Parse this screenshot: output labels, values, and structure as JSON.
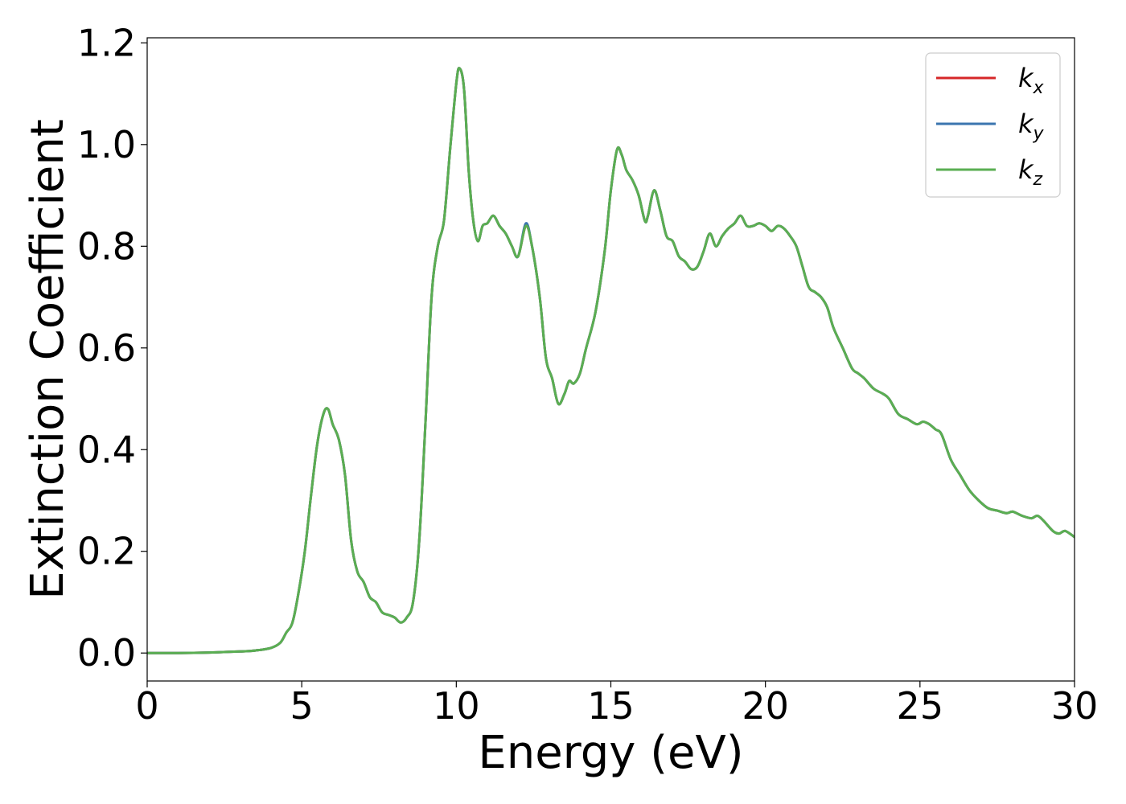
{
  "chart_data": {
    "type": "line",
    "title": "",
    "xlabel": "Energy (eV)",
    "ylabel": "Extinction Coefficient",
    "xlim": [
      0,
      30
    ],
    "ylim": [
      -0.055,
      1.21
    ],
    "xticks": [
      0,
      5,
      10,
      15,
      20,
      25,
      30
    ],
    "xtick_labels": [
      "0",
      "5",
      "10",
      "15",
      "20",
      "25",
      "30"
    ],
    "yticks": [
      0.0,
      0.2,
      0.4,
      0.6,
      0.8,
      1.0,
      1.2
    ],
    "ytick_labels": [
      "0.0",
      "0.2",
      "0.4",
      "0.6",
      "0.8",
      "1.0",
      "1.2"
    ],
    "grid": false,
    "legend_position": "top-right",
    "x": [
      0,
      1,
      2,
      3,
      3.5,
      4,
      4.3,
      4.5,
      4.7,
      4.9,
      5.1,
      5.3,
      5.5,
      5.7,
      5.85,
      6.0,
      6.2,
      6.4,
      6.6,
      6.8,
      7.0,
      7.2,
      7.4,
      7.6,
      7.8,
      8.0,
      8.2,
      8.4,
      8.6,
      8.8,
      9.0,
      9.2,
      9.4,
      9.6,
      9.8,
      10.0,
      10.1,
      10.25,
      10.4,
      10.55,
      10.7,
      10.85,
      11.0,
      11.2,
      11.4,
      11.6,
      11.8,
      12.0,
      12.25,
      12.45,
      12.7,
      12.9,
      13.1,
      13.3,
      13.5,
      13.65,
      13.8,
      14.0,
      14.2,
      14.5,
      14.8,
      15.0,
      15.2,
      15.35,
      15.5,
      15.7,
      15.9,
      16.1,
      16.2,
      16.4,
      16.6,
      16.8,
      17.0,
      17.2,
      17.4,
      17.6,
      17.8,
      18.0,
      18.2,
      18.4,
      18.6,
      18.8,
      19.0,
      19.2,
      19.4,
      19.6,
      19.8,
      20.0,
      20.2,
      20.4,
      20.6,
      20.8,
      21.0,
      21.2,
      21.4,
      21.6,
      21.8,
      22.0,
      22.2,
      22.5,
      22.8,
      23.0,
      23.2,
      23.5,
      23.8,
      24.0,
      24.3,
      24.6,
      24.9,
      25.1,
      25.3,
      25.5,
      25.7,
      26.0,
      26.3,
      26.6,
      26.9,
      27.2,
      27.5,
      27.8,
      28.0,
      28.3,
      28.6,
      28.8,
      29.0,
      29.3,
      29.5,
      29.7,
      30.0
    ],
    "series": [
      {
        "name": "k",
        "subscript": "x",
        "color": "#d62728",
        "values": [
          0.0,
          0.0,
          0.001,
          0.003,
          0.005,
          0.01,
          0.02,
          0.04,
          0.06,
          0.12,
          0.2,
          0.31,
          0.41,
          0.47,
          0.48,
          0.45,
          0.42,
          0.35,
          0.22,
          0.16,
          0.14,
          0.11,
          0.1,
          0.08,
          0.075,
          0.07,
          0.06,
          0.07,
          0.1,
          0.22,
          0.45,
          0.7,
          0.8,
          0.85,
          0.99,
          1.12,
          1.15,
          1.11,
          0.95,
          0.85,
          0.81,
          0.84,
          0.845,
          0.86,
          0.84,
          0.825,
          0.8,
          0.78,
          0.84,
          0.8,
          0.7,
          0.58,
          0.54,
          0.49,
          0.51,
          0.535,
          0.53,
          0.55,
          0.6,
          0.67,
          0.79,
          0.91,
          0.99,
          0.98,
          0.95,
          0.93,
          0.9,
          0.85,
          0.86,
          0.91,
          0.87,
          0.82,
          0.81,
          0.78,
          0.77,
          0.755,
          0.76,
          0.79,
          0.825,
          0.8,
          0.82,
          0.835,
          0.845,
          0.86,
          0.84,
          0.84,
          0.845,
          0.84,
          0.83,
          0.84,
          0.835,
          0.82,
          0.8,
          0.76,
          0.72,
          0.71,
          0.7,
          0.68,
          0.64,
          0.6,
          0.56,
          0.55,
          0.54,
          0.52,
          0.51,
          0.5,
          0.47,
          0.46,
          0.45,
          0.455,
          0.45,
          0.44,
          0.43,
          0.38,
          0.35,
          0.32,
          0.3,
          0.285,
          0.28,
          0.275,
          0.278,
          0.27,
          0.265,
          0.27,
          0.26,
          0.24,
          0.235,
          0.24,
          0.228
        ]
      },
      {
        "name": "k",
        "subscript": "y",
        "color": "#3b75af",
        "values": [
          0.0,
          0.0,
          0.001,
          0.003,
          0.005,
          0.01,
          0.02,
          0.04,
          0.06,
          0.12,
          0.2,
          0.31,
          0.41,
          0.47,
          0.48,
          0.45,
          0.42,
          0.35,
          0.22,
          0.16,
          0.14,
          0.11,
          0.1,
          0.08,
          0.075,
          0.07,
          0.06,
          0.07,
          0.1,
          0.22,
          0.45,
          0.7,
          0.8,
          0.85,
          0.99,
          1.12,
          1.15,
          1.11,
          0.95,
          0.85,
          0.81,
          0.84,
          0.845,
          0.86,
          0.84,
          0.825,
          0.8,
          0.78,
          0.845,
          0.8,
          0.7,
          0.58,
          0.54,
          0.49,
          0.51,
          0.535,
          0.53,
          0.55,
          0.6,
          0.67,
          0.79,
          0.91,
          0.99,
          0.98,
          0.95,
          0.93,
          0.9,
          0.85,
          0.86,
          0.91,
          0.87,
          0.82,
          0.81,
          0.78,
          0.77,
          0.755,
          0.76,
          0.79,
          0.825,
          0.8,
          0.82,
          0.835,
          0.845,
          0.86,
          0.84,
          0.84,
          0.845,
          0.84,
          0.83,
          0.84,
          0.835,
          0.82,
          0.8,
          0.76,
          0.72,
          0.71,
          0.7,
          0.68,
          0.64,
          0.6,
          0.56,
          0.55,
          0.54,
          0.52,
          0.51,
          0.5,
          0.47,
          0.46,
          0.45,
          0.455,
          0.45,
          0.44,
          0.43,
          0.38,
          0.35,
          0.32,
          0.3,
          0.285,
          0.28,
          0.275,
          0.278,
          0.27,
          0.265,
          0.27,
          0.26,
          0.24,
          0.235,
          0.24,
          0.228
        ]
      },
      {
        "name": "k",
        "subscript": "z",
        "color": "#5aae52",
        "values": [
          0.0,
          0.0,
          0.001,
          0.003,
          0.005,
          0.01,
          0.02,
          0.04,
          0.06,
          0.12,
          0.2,
          0.31,
          0.41,
          0.47,
          0.48,
          0.45,
          0.42,
          0.35,
          0.22,
          0.16,
          0.14,
          0.11,
          0.1,
          0.08,
          0.075,
          0.07,
          0.06,
          0.07,
          0.1,
          0.22,
          0.45,
          0.7,
          0.8,
          0.85,
          0.99,
          1.12,
          1.15,
          1.11,
          0.95,
          0.85,
          0.81,
          0.84,
          0.845,
          0.86,
          0.84,
          0.825,
          0.8,
          0.78,
          0.84,
          0.8,
          0.7,
          0.58,
          0.54,
          0.49,
          0.51,
          0.535,
          0.53,
          0.55,
          0.6,
          0.67,
          0.79,
          0.91,
          0.99,
          0.98,
          0.95,
          0.93,
          0.9,
          0.85,
          0.86,
          0.91,
          0.87,
          0.82,
          0.81,
          0.78,
          0.77,
          0.755,
          0.76,
          0.79,
          0.825,
          0.8,
          0.82,
          0.835,
          0.845,
          0.86,
          0.84,
          0.84,
          0.845,
          0.84,
          0.83,
          0.84,
          0.835,
          0.82,
          0.8,
          0.76,
          0.72,
          0.71,
          0.7,
          0.68,
          0.64,
          0.6,
          0.56,
          0.55,
          0.54,
          0.52,
          0.51,
          0.5,
          0.47,
          0.46,
          0.45,
          0.455,
          0.45,
          0.44,
          0.43,
          0.38,
          0.35,
          0.32,
          0.3,
          0.285,
          0.28,
          0.275,
          0.278,
          0.27,
          0.265,
          0.27,
          0.26,
          0.24,
          0.235,
          0.24,
          0.228
        ]
      }
    ]
  }
}
